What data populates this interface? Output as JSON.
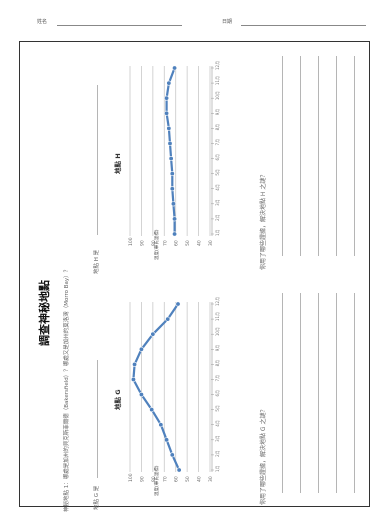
{
  "header": {
    "name_label": "姓名",
    "date_label": "日期"
  },
  "title": "調查神秘地點",
  "mystery_prompt": "神秘地點 1：哪處是加州的貝克斯菲爾德（Bakersfield）？哪處又是加州的莫洛灣（Morro Bay）？",
  "location_g_prompt": "地點 G 是",
  "location_h_prompt": "地點 H 是",
  "question_g": "你用了哪些證據，解決地點 G 之謎？",
  "question_h": "你用了哪些證據，解決地點 H 之謎？",
  "chart_data": [
    {
      "type": "line",
      "title": "地點 G",
      "ylabel": "溫度(華氏溫標)",
      "y_ticks": [
        "30",
        "40",
        "50",
        "60",
        "70",
        "80",
        "90",
        "100"
      ],
      "x_ticks": [
        "1月",
        "2月",
        "3月",
        "4月",
        "5月",
        "6月",
        "7月",
        "8月",
        "9月",
        "10月",
        "11月",
        "12月"
      ],
      "ylim": [
        30,
        100
      ],
      "values": [
        57,
        63,
        68,
        73,
        81,
        90,
        97,
        96,
        90,
        80,
        67,
        58
      ],
      "color": "#4f81bd"
    },
    {
      "type": "line",
      "title": "地點 H",
      "ylabel": "溫度(華氏溫標)",
      "y_ticks": [
        "30",
        "40",
        "50",
        "60",
        "70",
        "80",
        "90",
        "100"
      ],
      "x_ticks": [
        "1月",
        "2月",
        "3月",
        "4月",
        "5月",
        "6月",
        "7月",
        "8月",
        "9月",
        "10月",
        "11月",
        "12月"
      ],
      "ylim": [
        30,
        100
      ],
      "values": [
        61,
        61,
        62,
        63,
        63,
        64,
        65,
        66,
        68,
        68,
        66,
        61
      ],
      "color": "#4f81bd"
    }
  ]
}
